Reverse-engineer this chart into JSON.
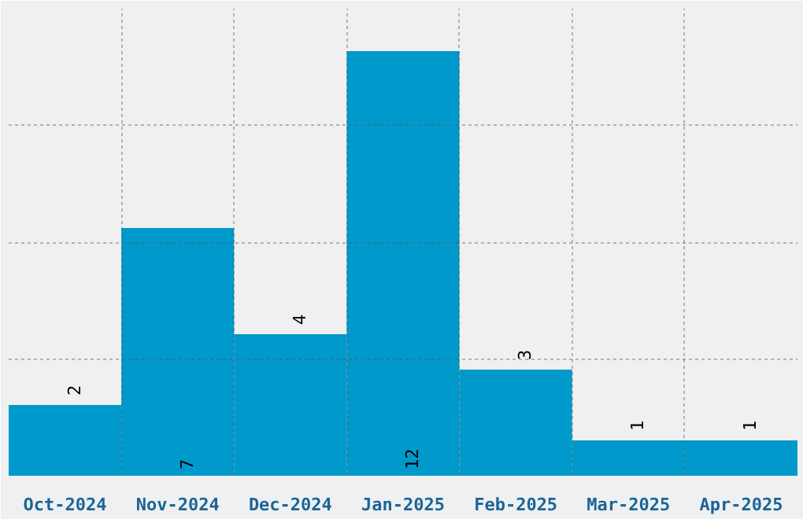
{
  "chart_data": {
    "type": "bar",
    "categories": [
      "Oct-2024",
      "Nov-2024",
      "Dec-2024",
      "Jan-2025",
      "Feb-2025",
      "Mar-2025",
      "Apr-2025"
    ],
    "values": [
      2,
      7,
      4,
      12,
      3,
      1,
      1
    ],
    "color": "#0099cc",
    "ylim": [
      0,
      13.2
    ],
    "yticks": [
      {
        "value": 3.3,
        "label": null
      },
      {
        "value": 6.6,
        "label": null
      },
      {
        "value": 9.9,
        "label": null
      }
    ],
    "tick_labels": "x",
    "grid": true,
    "data_labels": true
  }
}
